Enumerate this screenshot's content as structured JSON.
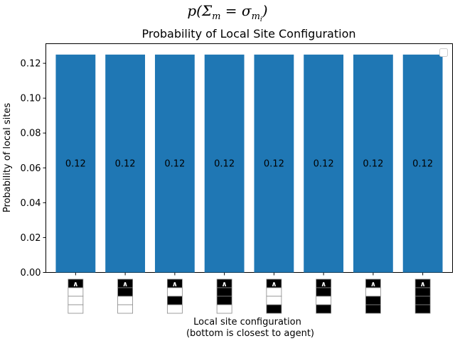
{
  "chart_data": {
    "type": "bar",
    "suptitle": "p(Σm = σmi)",
    "title": "Probability of Local Site Configuration",
    "xlabel": "Local site configuration",
    "xlabel_note": "(bottom is closest to agent)",
    "ylabel": "Probability of local sites",
    "ylim": [
      0,
      0.13125
    ],
    "yticks": [
      "0.00",
      "0.02",
      "0.04",
      "0.06",
      "0.08",
      "0.10",
      "0.12"
    ],
    "categories": [
      "empty-empty-empty",
      "filled-empty-empty",
      "empty-filled-empty",
      "filled-filled-empty",
      "empty-empty-filled",
      "filled-empty-filled",
      "empty-filled-filled",
      "filled-filled-filled"
    ],
    "configurations": [
      [
        0,
        0,
        0
      ],
      [
        1,
        0,
        0
      ],
      [
        0,
        1,
        0
      ],
      [
        1,
        1,
        0
      ],
      [
        0,
        0,
        1
      ],
      [
        1,
        0,
        1
      ],
      [
        0,
        1,
        1
      ],
      [
        1,
        1,
        1
      ]
    ],
    "values": [
      0.125,
      0.125,
      0.125,
      0.125,
      0.125,
      0.125,
      0.125,
      0.125
    ],
    "bar_labels": [
      "0.12",
      "0.12",
      "0.12",
      "0.12",
      "0.12",
      "0.12",
      "0.12",
      "0.12"
    ],
    "agent_glyph": "∧",
    "legend": "top-right",
    "legend_entries": [],
    "grid": false,
    "colors": {
      "bar": "#1f77b4",
      "filled": "#000000",
      "empty": "#ffffff",
      "agent": "#000000"
    }
  }
}
